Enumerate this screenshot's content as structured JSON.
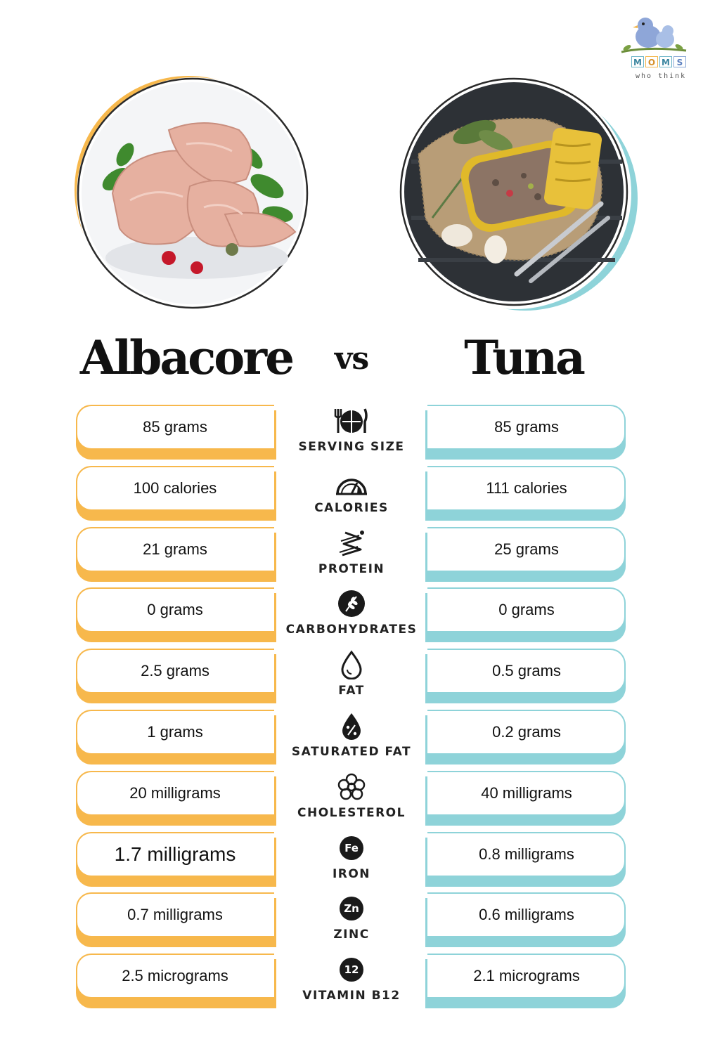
{
  "logo": {
    "letters": [
      "M",
      "O",
      "M",
      "S"
    ],
    "tagline": "who think"
  },
  "headings": {
    "left": "Albacore",
    "vs": "vs",
    "right": "Tuna"
  },
  "colors": {
    "left_accent": "#f7b84c",
    "right_accent": "#8ed3d9",
    "text": "#111111"
  },
  "rows": [
    {
      "label": "SERVING SIZE",
      "icon": "plate-fork-knife-icon",
      "left": "85 grams",
      "right": "85 grams"
    },
    {
      "label": "CALORIES",
      "icon": "gauge-icon",
      "left": "100 calories",
      "right": "111 calories"
    },
    {
      "label": "PROTEIN",
      "icon": "protein-chain-icon",
      "left": "21 grams",
      "right": "25 grams"
    },
    {
      "label": "CARBOHYDRATES",
      "icon": "grain-icon",
      "left": "0 grams",
      "right": "0 grams"
    },
    {
      "label": "FAT",
      "icon": "oil-drop-icon",
      "left": "2.5 grams",
      "right": "0.5 grams"
    },
    {
      "label": "SATURATED FAT",
      "icon": "percent-drop-icon",
      "left": "1 grams",
      "right": "0.2 grams"
    },
    {
      "label": "CHOLESTEROL",
      "icon": "cholesterol-molecule-icon",
      "left": "20 milligrams",
      "right": "40 milligrams"
    },
    {
      "label": "IRON",
      "icon": "iron-fe-icon",
      "badge": "Fe",
      "left": "1.7 milligrams",
      "right": "0.8 milligrams"
    },
    {
      "label": "ZINC",
      "icon": "zinc-zn-icon",
      "badge": "Zn",
      "left": "0.7 milligrams",
      "right": "0.6 milligrams"
    },
    {
      "label": "VITAMIN B12",
      "icon": "vitamin-b12-icon",
      "badge": "12",
      "left": "2.5 micrograms",
      "right": "2.1 micrograms"
    }
  ]
}
